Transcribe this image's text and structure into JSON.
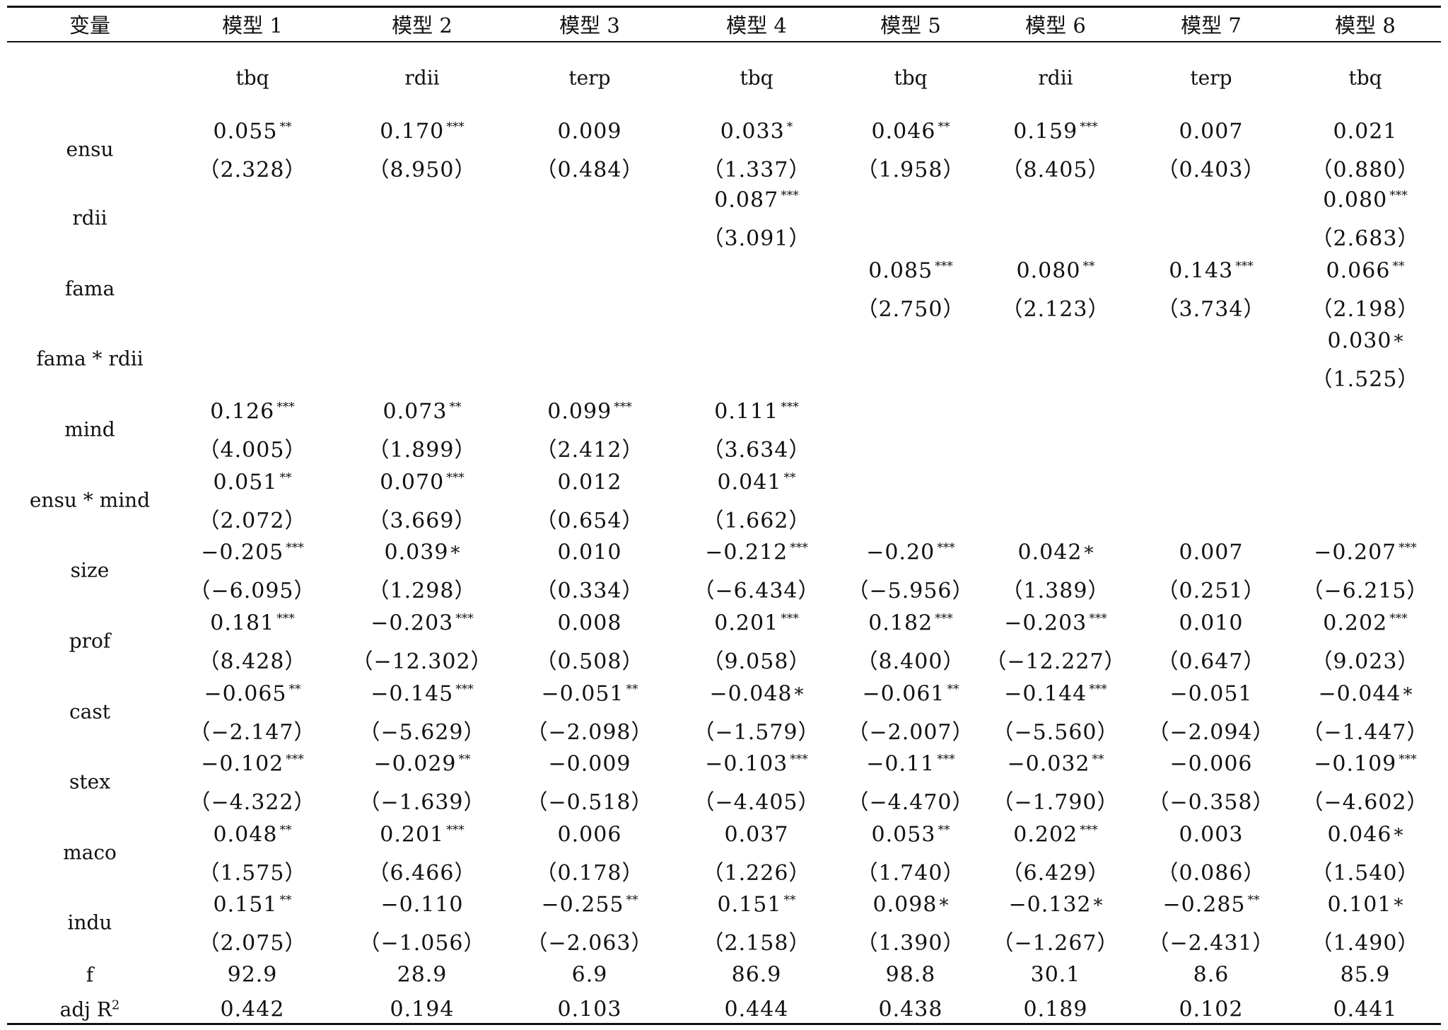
{
  "table": {
    "corner_label": "变量",
    "models": [
      "模型 1",
      "模型 2",
      "模型 3",
      "模型 4",
      "模型 5",
      "模型 6",
      "模型 7",
      "模型 8"
    ],
    "dependent": [
      "tbq",
      "rdii",
      "terp",
      "tbq",
      "tbq",
      "rdii",
      "terp",
      "tbq"
    ],
    "rows": [
      {
        "var": "ensu",
        "coef": [
          "0.055",
          "0.170",
          "0.009",
          "0.033",
          "0.046",
          "0.159",
          "0.007",
          "0.021"
        ],
        "stars": [
          "**",
          "***",
          "",
          "*",
          "**",
          "***",
          "",
          ""
        ],
        "t": [
          "（2.328）",
          "（8.950）",
          "（0.484）",
          "（1.337）",
          "（1.958）",
          "（8.405）",
          "（0.403）",
          "（0.880）"
        ]
      },
      {
        "var": "rdii",
        "coef": [
          "",
          "",
          "",
          "0.087",
          "",
          "",
          "",
          "0.080"
        ],
        "stars": [
          "",
          "",
          "",
          "***",
          "",
          "",
          "",
          "***"
        ],
        "t": [
          "",
          "",
          "",
          "（3.091）",
          "",
          "",
          "",
          "（2.683）"
        ]
      },
      {
        "var": "fama",
        "coef": [
          "",
          "",
          "",
          "",
          "0.085",
          "0.080",
          "0.143",
          "0.066"
        ],
        "stars": [
          "",
          "",
          "",
          "",
          "***",
          "**",
          "***",
          "**"
        ],
        "t": [
          "",
          "",
          "",
          "",
          "（2.750）",
          "（2.123）",
          "（3.734）",
          "（2.198）"
        ]
      },
      {
        "var": "fama * rdii",
        "coef": [
          "",
          "",
          "",
          "",
          "",
          "",
          "",
          "0.030"
        ],
        "stars": [
          "",
          "",
          "",
          "",
          "",
          "",
          "",
          "*"
        ],
        "t": [
          "",
          "",
          "",
          "",
          "",
          "",
          "",
          "（1.525）"
        ]
      },
      {
        "var": "mind",
        "coef": [
          "0.126",
          "0.073",
          "0.099",
          "0.111",
          "",
          "",
          "",
          ""
        ],
        "stars": [
          "***",
          "**",
          "***",
          "***",
          "",
          "",
          "",
          ""
        ],
        "t": [
          "（4.005）",
          "（1.899）",
          "（2.412）",
          "（3.634）",
          "",
          "",
          "",
          ""
        ]
      },
      {
        "var": "ensu * mind",
        "coef": [
          "0.051",
          "0.070",
          "0.012",
          "0.041",
          "",
          "",
          "",
          ""
        ],
        "stars": [
          "**",
          "***",
          "",
          "**",
          "",
          "",
          "",
          ""
        ],
        "t": [
          "（2.072）",
          "（3.669）",
          "（0.654）",
          "（1.662）",
          "",
          "",
          "",
          ""
        ]
      },
      {
        "var": "size",
        "coef": [
          "−0.205",
          "0.039",
          "0.010",
          "−0.212",
          "−0.20",
          "0.042",
          "0.007",
          "−0.207"
        ],
        "stars": [
          "***",
          "*",
          "",
          "***",
          "***",
          "*",
          "",
          "***"
        ],
        "t": [
          "（−6.095）",
          "（1.298）",
          "（0.334）",
          "（−6.434）",
          "（−5.956）",
          "（1.389）",
          "（0.251）",
          "（−6.215）"
        ]
      },
      {
        "var": "prof",
        "coef": [
          "0.181",
          "−0.203",
          "0.008",
          "0.201",
          "0.182",
          "−0.203",
          "0.010",
          "0.202"
        ],
        "stars": [
          "***",
          "***",
          "",
          "***",
          "***",
          "***",
          "",
          "***"
        ],
        "t": [
          "（8.428）",
          "（−12.302）",
          "（0.508）",
          "（9.058）",
          "（8.400）",
          "（−12.227）",
          "（0.647）",
          "（9.023）"
        ]
      },
      {
        "var": "cast",
        "coef": [
          "−0.065",
          "−0.145",
          "−0.051",
          "−0.048",
          "−0.061",
          "−0.144",
          "−0.051",
          "−0.044"
        ],
        "stars": [
          "**",
          "***",
          "**",
          "*",
          "**",
          "***",
          "",
          "*"
        ],
        "t": [
          "（−2.147）",
          "（−5.629）",
          "（−2.098）",
          "（−1.579）",
          "（−2.007）",
          "（−5.560）",
          "（−2.094）",
          "（−1.447）"
        ]
      },
      {
        "var": "stex",
        "coef": [
          "−0.102",
          "−0.029",
          "−0.009",
          "−0.103",
          "−0.11",
          "−0.032",
          "−0.006",
          "−0.109"
        ],
        "stars": [
          "***",
          "**",
          "",
          "***",
          "***",
          "**",
          "",
          "***"
        ],
        "t": [
          "（−4.322）",
          "（−1.639）",
          "（−0.518）",
          "（−4.405）",
          "（−4.470）",
          "（−1.790）",
          "（−0.358）",
          "（−4.602）"
        ]
      },
      {
        "var": "maco",
        "coef": [
          "0.048",
          "0.201",
          "0.006",
          "0.037",
          "0.053",
          "0.202",
          "0.003",
          "0.046"
        ],
        "stars": [
          "**",
          "***",
          "",
          "",
          "**",
          "***",
          "",
          "*"
        ],
        "t": [
          "（1.575）",
          "（6.466）",
          "（0.178）",
          "（1.226）",
          "（1.740）",
          "（6.429）",
          "（0.086）",
          "（1.540）"
        ]
      },
      {
        "var": "indu",
        "coef": [
          "0.151",
          "−0.110",
          "−0.255",
          "0.151",
          "0.098",
          "−0.132",
          "−0.285",
          "0.101"
        ],
        "stars": [
          "**",
          "",
          "**",
          "**",
          "*",
          "*",
          "**",
          "*"
        ],
        "t": [
          "（2.075）",
          "（−1.056）",
          "（−2.063）",
          "（2.158）",
          "（1.390）",
          "（−1.267）",
          "（−2.431）",
          "（1.490）"
        ]
      }
    ],
    "f_row": {
      "var": "f",
      "values": [
        "92.9",
        "28.9",
        "6.9",
        "86.9",
        "98.8",
        "30.1",
        "8.6",
        "85.9"
      ]
    },
    "r2_row": {
      "var_prefix": "adj R",
      "var_sup": "2",
      "values": [
        "0.442",
        "0.194",
        "0.103",
        "0.444",
        "0.438",
        "0.189",
        "0.102",
        "0.441"
      ]
    }
  }
}
